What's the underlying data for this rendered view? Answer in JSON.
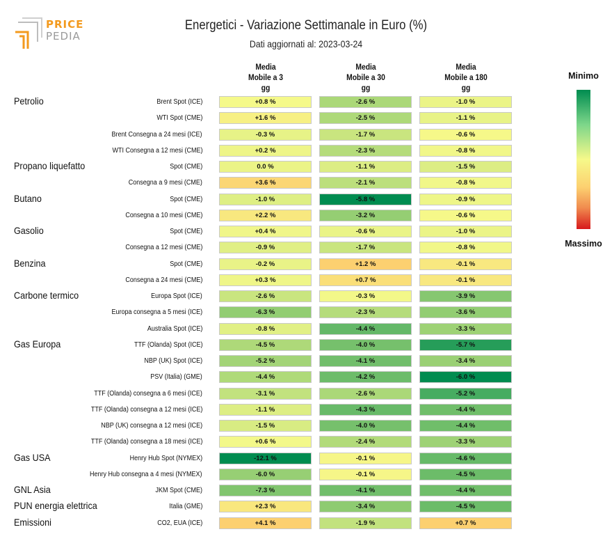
{
  "logo": {
    "line1": "PRICE",
    "line2": "PEDIA",
    "accent": "#f39a1e",
    "gray": "#9a9a9a"
  },
  "header": {
    "title": "Energetici - Variazione Settimanale in Euro (%)",
    "subtitle": "Dati aggiornati al: 2023-03-24"
  },
  "legend": {
    "min_label": "Minimo",
    "max_label": "Massimo",
    "low_color": "#008c50",
    "mid_color": "#f6f98a",
    "high_color": "#d7191c"
  },
  "chart_data": {
    "type": "heatmap",
    "title": "Energetici - Variazione Settimanale in Euro (%)",
    "columns": [
      "Media\nMobile a 3\ngg",
      "Media\nMobile a 30\ngg",
      "Media\nMobile a 180\ngg"
    ],
    "column_ranges": [
      [
        -12.1,
        4.1
      ],
      [
        -5.8,
        1.2
      ],
      [
        -6.0,
        0.7
      ]
    ],
    "groups": [
      {
        "name": "Petrolio",
        "rows": [
          {
            "label": "Brent Spot (ICE)",
            "values": [
              0.8,
              -2.6,
              -1.0
            ],
            "text": [
              "+0.8 %",
              "-2.6 %",
              "-1.0 %"
            ]
          },
          {
            "label": "WTI Spot (CME)",
            "values": [
              1.6,
              -2.5,
              -1.1
            ],
            "text": [
              "+1.6 %",
              "-2.5 %",
              "-1.1 %"
            ]
          },
          {
            "label": "Brent Consegna a 24 mesi (ICE)",
            "values": [
              -0.3,
              -1.7,
              -0.6
            ],
            "text": [
              "-0.3 %",
              "-1.7 %",
              "-0.6 %"
            ]
          },
          {
            "label": "WTI Consegna a 12 mesi (CME)",
            "values": [
              0.2,
              -2.3,
              -0.8
            ],
            "text": [
              "+0.2 %",
              "-2.3 %",
              "-0.8 %"
            ]
          }
        ]
      },
      {
        "name": "Propano liquefatto",
        "rows": [
          {
            "label": "Spot (CME)",
            "values": [
              0.0,
              -1.1,
              -1.5
            ],
            "text": [
              "0.0 %",
              "-1.1 %",
              "-1.5 %"
            ]
          },
          {
            "label": "Consegna a 9 mesi (CME)",
            "values": [
              3.6,
              -2.1,
              -0.8
            ],
            "text": [
              "+3.6 %",
              "-2.1 %",
              "-0.8 %"
            ]
          }
        ]
      },
      {
        "name": "Butano",
        "rows": [
          {
            "label": "Spot (CME)",
            "values": [
              -1.0,
              -5.8,
              -0.9
            ],
            "text": [
              "-1.0 %",
              "-5.8 %",
              "-0.9 %"
            ]
          },
          {
            "label": "Consegna a 10 mesi (CME)",
            "values": [
              2.2,
              -3.2,
              -0.6
            ],
            "text": [
              "+2.2 %",
              "-3.2 %",
              "-0.6 %"
            ]
          }
        ]
      },
      {
        "name": "Gasolio",
        "rows": [
          {
            "label": "Spot (CME)",
            "values": [
              0.4,
              -0.6,
              -1.0
            ],
            "text": [
              "+0.4 %",
              "-0.6 %",
              "-1.0 %"
            ]
          },
          {
            "label": "Consegna a 12 mesi (CME)",
            "values": [
              -0.9,
              -1.7,
              -0.8
            ],
            "text": [
              "-0.9 %",
              "-1.7 %",
              "-0.8 %"
            ]
          }
        ]
      },
      {
        "name": "Benzina",
        "rows": [
          {
            "label": "Spot (CME)",
            "values": [
              -0.2,
              1.2,
              -0.1
            ],
            "text": [
              "-0.2 %",
              "+1.2 %",
              "-0.1 %"
            ]
          },
          {
            "label": "Consegna a 24 mesi (CME)",
            "values": [
              0.3,
              0.7,
              -0.1
            ],
            "text": [
              "+0.3 %",
              "+0.7 %",
              "-0.1 %"
            ]
          }
        ]
      },
      {
        "name": "Carbone termico",
        "rows": [
          {
            "label": "Europa Spot (ICE)",
            "values": [
              -2.6,
              -0.3,
              -3.9
            ],
            "text": [
              "-2.6 %",
              "-0.3 %",
              "-3.9 %"
            ]
          },
          {
            "label": "Europa consegna a 5 mesi (ICE)",
            "values": [
              -6.3,
              -2.3,
              -3.6
            ],
            "text": [
              "-6.3 %",
              "-2.3 %",
              "-3.6 %"
            ]
          },
          {
            "label": "Australia Spot (ICE)",
            "values": [
              -0.8,
              -4.4,
              -3.3
            ],
            "text": [
              "-0.8 %",
              "-4.4 %",
              "-3.3 %"
            ]
          }
        ]
      },
      {
        "name": "Gas Europa",
        "rows": [
          {
            "label": "TTF (Olanda) Spot (ICE)",
            "values": [
              -4.5,
              -4.0,
              -5.7
            ],
            "text": [
              "-4.5 %",
              "-4.0 %",
              "-5.7 %"
            ]
          },
          {
            "label": "NBP (UK) Spot (ICE)",
            "values": [
              -5.2,
              -4.1,
              -3.4
            ],
            "text": [
              "-5.2 %",
              "-4.1 %",
              "-3.4 %"
            ]
          },
          {
            "label": "PSV (Italia) (GME)",
            "values": [
              -4.4,
              -4.2,
              -6.0
            ],
            "text": [
              "-4.4 %",
              "-4.2 %",
              "-6.0 %"
            ]
          },
          {
            "label": "TTF (Olanda) consegna a 6 mesi (ICE)",
            "values": [
              -3.1,
              -2.6,
              -5.2
            ],
            "text": [
              "-3.1 %",
              "-2.6 %",
              "-5.2 %"
            ]
          },
          {
            "label": "TTF (Olanda) consegna a 12 mesi (ICE)",
            "values": [
              -1.1,
              -4.3,
              -4.4
            ],
            "text": [
              "-1.1 %",
              "-4.3 %",
              "-4.4 %"
            ]
          },
          {
            "label": "NBP (UK) consegna a 12 mesi (ICE)",
            "values": [
              -1.5,
              -4.0,
              -4.4
            ],
            "text": [
              "-1.5 %",
              "-4.0 %",
              "-4.4 %"
            ]
          },
          {
            "label": "TTF (Olanda) consegna a 18 mesi (ICE)",
            "values": [
              0.6,
              -2.4,
              -3.3
            ],
            "text": [
              "+0.6 %",
              "-2.4 %",
              "-3.3 %"
            ]
          }
        ]
      },
      {
        "name": "Gas USA",
        "rows": [
          {
            "label": "Henry Hub Spot (NYMEX)",
            "values": [
              -12.1,
              -0.1,
              -4.6
            ],
            "text": [
              "-12.1 %",
              "-0.1 %",
              "-4.6 %"
            ]
          },
          {
            "label": "Henry Hub consegna a 4 mesi (NYMEX)",
            "values": [
              -6.0,
              -0.1,
              -4.5
            ],
            "text": [
              "-6.0 %",
              "-0.1 %",
              "-4.5 %"
            ]
          }
        ]
      },
      {
        "name": "GNL Asia",
        "rows": [
          {
            "label": "JKM Spot (CME)",
            "values": [
              -7.3,
              -4.1,
              -4.4
            ],
            "text": [
              "-7.3 %",
              "-4.1 %",
              "-4.4 %"
            ]
          }
        ]
      },
      {
        "name": "PUN energia elettrica",
        "rows": [
          {
            "label": "Italia (GME)",
            "values": [
              2.3,
              -3.4,
              -4.5
            ],
            "text": [
              "+2.3 %",
              "-3.4 %",
              "-4.5 %"
            ]
          }
        ]
      },
      {
        "name": "Emissioni",
        "rows": [
          {
            "label": "CO2, EUA (ICE)",
            "values": [
              4.1,
              -1.9,
              0.7
            ],
            "text": [
              "+4.1 %",
              "-1.9 %",
              "+0.7 %"
            ]
          }
        ]
      }
    ]
  }
}
